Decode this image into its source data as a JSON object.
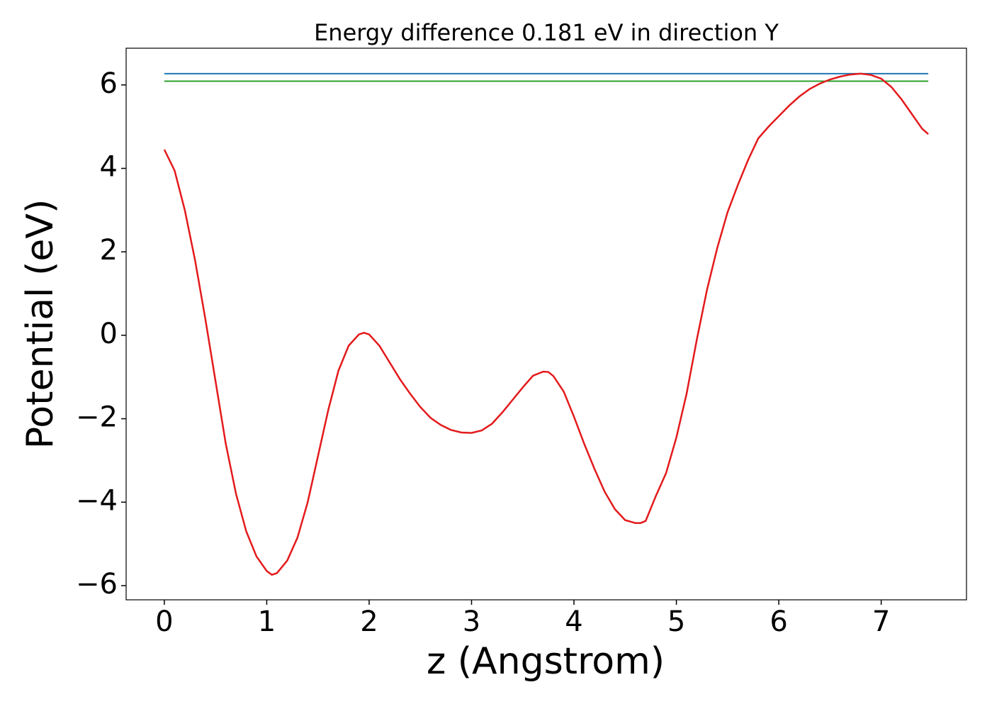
{
  "chart_data": {
    "type": "line",
    "title": "Energy difference 0.181 eV in direction Y",
    "x_label": "z (Angstrom)",
    "y_label": "Potential (eV)",
    "xlim": [
      -0.373,
      7.833
    ],
    "ylim": [
      -6.34,
      6.88
    ],
    "xticks": [
      0,
      1,
      2,
      3,
      4,
      5,
      6,
      7
    ],
    "yticks": [
      {
        "value": -6,
        "label": "−6"
      },
      {
        "value": -4,
        "label": "−4"
      },
      {
        "value": -2,
        "label": "−2"
      },
      0,
      2,
      4,
      6
    ],
    "series": [
      {
        "color": "#1f77b4",
        "x": [
          0,
          7.46
        ],
        "values": [
          6.27,
          6.27
        ]
      },
      {
        "color": "#2ca02c",
        "x": [
          0,
          7.46
        ],
        "values": [
          6.09,
          6.09
        ]
      },
      {
        "color": "#e31a1c",
        "x": [
          0,
          0.1,
          0.2,
          0.3,
          0.4,
          0.5,
          0.6,
          0.7,
          0.8,
          0.9,
          1.0,
          1.05,
          1.1,
          1.2,
          1.3,
          1.4,
          1.5,
          1.6,
          1.7,
          1.8,
          1.9,
          1.95,
          2.0,
          2.1,
          2.2,
          2.3,
          2.4,
          2.5,
          2.6,
          2.7,
          2.8,
          2.9,
          3.0,
          3.1,
          3.2,
          3.3,
          3.4,
          3.5,
          3.6,
          3.7,
          3.75,
          3.8,
          3.9,
          4.0,
          4.1,
          4.2,
          4.3,
          4.4,
          4.5,
          4.6,
          4.65,
          4.7,
          4.8,
          4.9,
          5.0,
          5.1,
          5.2,
          5.3,
          5.4,
          5.5,
          5.6,
          5.7,
          5.8,
          5.9,
          6.0,
          6.1,
          6.2,
          6.3,
          6.4,
          6.5,
          6.6,
          6.7,
          6.8,
          6.9,
          7.0,
          7.1,
          7.2,
          7.3,
          7.4,
          7.46
        ],
        "values": [
          4.45,
          3.95,
          3.0,
          1.8,
          0.4,
          -1.1,
          -2.6,
          -3.8,
          -4.7,
          -5.3,
          -5.65,
          -5.74,
          -5.7,
          -5.4,
          -4.85,
          -4.0,
          -2.9,
          -1.8,
          -0.85,
          -0.25,
          0.02,
          0.06,
          0.02,
          -0.25,
          -0.65,
          -1.05,
          -1.4,
          -1.72,
          -1.98,
          -2.15,
          -2.27,
          -2.33,
          -2.34,
          -2.28,
          -2.12,
          -1.85,
          -1.55,
          -1.25,
          -0.97,
          -0.87,
          -0.88,
          -0.98,
          -1.35,
          -1.95,
          -2.6,
          -3.2,
          -3.75,
          -4.17,
          -4.43,
          -4.5,
          -4.5,
          -4.45,
          -3.85,
          -3.3,
          -2.45,
          -1.4,
          -0.1,
          1.1,
          2.1,
          2.95,
          3.6,
          4.2,
          4.72,
          5.0,
          5.25,
          5.5,
          5.72,
          5.9,
          6.03,
          6.13,
          6.2,
          6.25,
          6.27,
          6.24,
          6.15,
          5.95,
          5.65,
          5.3,
          4.95,
          4.82
        ]
      }
    ]
  }
}
